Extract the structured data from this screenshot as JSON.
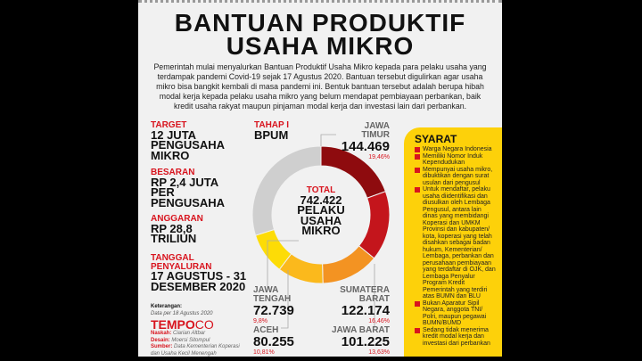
{
  "title": [
    "BANTUAN PRODUKTIF",
    "USAHA MIKRO"
  ],
  "intro": "Pemerintah mulai menyalurkan Bantuan Produktif Usaha Mikro kepada para pelaku usaha yang terdampak pandemi Covid-19 sejak 17 Agustus 2020. Bantuan tersebut digulirkan agar usaha mikro bisa bangkit kembali di masa pandemi ini. Bentuk bantuan tersebut adalah berupa hibah modal kerja kepada pelaku usaha mikro yang belum mendapat pembiayaan perbankan, baik kredit usaha rakyat maupun pinjaman modal kerja dan investasi lain dari perbankan.",
  "facts": [
    {
      "label": "TARGET",
      "value": "12 JUTA PENGUSAHA MIKRO"
    },
    {
      "label": "BESARAN",
      "value": "RP 2,4 JUTA PER PENGUSAHA"
    },
    {
      "label": "ANGGARAN",
      "value": "RP 28,8 TRILIUN"
    },
    {
      "label": "TANGGAL PENYALURAN",
      "value": "17 AGUSTUS - 31 DESEMBER 2020"
    }
  ],
  "note": {
    "label": "Keterangan:",
    "text": "Data per 18 Agustus 2020"
  },
  "brand": {
    "name": "TEMPO",
    "suffix": "CO"
  },
  "credits": [
    {
      "label": "Naskah:",
      "text": "Ciarian Altbar"
    },
    {
      "label": "Desain:",
      "text": "Moersi Sitompul"
    },
    {
      "label": "Sumber:",
      "text": "Data Kementerian Koperasi dan Usaha Kecil Menengah"
    }
  ],
  "phase": {
    "label": "TAHAP I",
    "value": "BPUM"
  },
  "total": {
    "label": "TOTAL",
    "value": "742.422",
    "unit": "PELAKU USAHA MIKRO"
  },
  "chart_data": {
    "type": "pie",
    "donut": true,
    "segments": [
      {
        "name": "JAWA TIMUR",
        "value": 144469,
        "percent_label": "19,46%",
        "percent": 19.46,
        "color": "#8e0b0e"
      },
      {
        "name": "SUMATERA BARAT",
        "value": 122174,
        "percent_label": "16,46%",
        "percent": 16.46,
        "color": "#c4151c"
      },
      {
        "name": "JAWA BARAT",
        "value": 101225,
        "percent_label": "13,63%",
        "percent": 13.63,
        "color": "#f39322"
      },
      {
        "name": "ACEH",
        "value": 80255,
        "percent_label": "10,81%",
        "percent": 10.81,
        "color": "#fbb91c"
      },
      {
        "name": "JAWA TENGAH",
        "value": 72739,
        "percent_label": "9,8%",
        "percent": 9.8,
        "color": "#fddc06"
      },
      {
        "name": "",
        "value": 221560,
        "percent": 29.84,
        "color": "#cfcfcf"
      }
    ],
    "labels_display": [
      {
        "name": "JAWA TIMUR",
        "value": "144.469",
        "pct": "19,46%"
      },
      {
        "name": "SUMATERA BARAT",
        "value": "122.174",
        "pct": "16,46%"
      },
      {
        "name": "JAWA BARAT",
        "value": "101.225",
        "pct": "13,63%"
      },
      {
        "name": "ACEH",
        "value": "80.255",
        "pct": "10,81%"
      },
      {
        "name": "JAWA TENGAH",
        "value": "72.739",
        "pct": "9,8%"
      }
    ]
  },
  "syarat": {
    "title": "SYARAT",
    "items": [
      "Warga Negara Indonesia",
      "Memiliki Nomor Induk Kependudukan",
      "Mempunyai usaha mikro, dibuktikan dengan surat usulan dari pengusul",
      "Untuk mendaftar, pelaku usaha diidentifikasi dan diusulkan oleh Lembaga Pengusul, antara lain dinas yang membidangi Koperasi dan UMKM Provinsi dan kabupaten/ kota, koperasi yang telah disahkan sebagai badan hukum, Kementerian/ Lembaga, perbankan dan perusahaan pembiayaan yang terdaftar di OJK, dan Lembaga Penyalur Program Kredit Pemerintah yang terdiri atas BUMN dan BLU",
      "Bukan Aparatur Sipil Negara, anggota TNI/ Polri, maupun pegawai BUMN/BUMD",
      "Sedang tidak menerima kredit modal kerja dan investasi dari perbankan"
    ]
  }
}
